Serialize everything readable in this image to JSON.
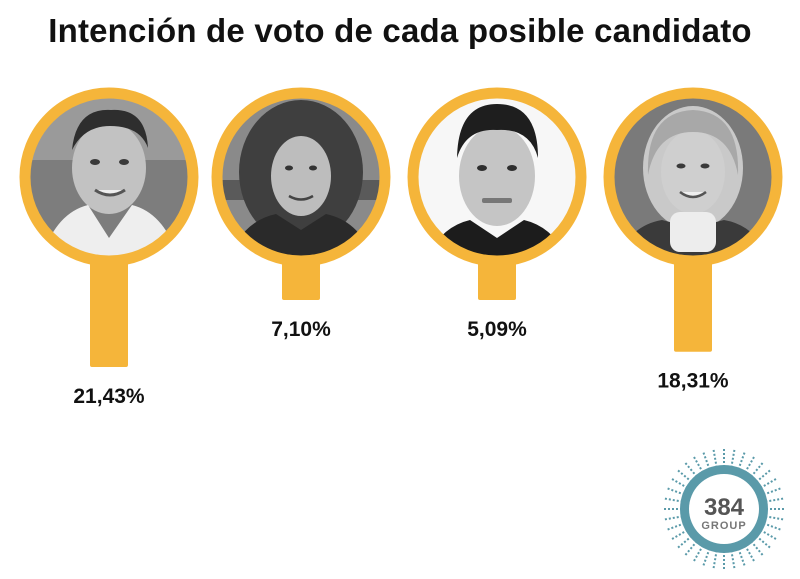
{
  "chart_data": {
    "type": "bar",
    "title": "Intención de voto de cada posible candidato",
    "value_labels": [
      "21,43%",
      "7,10%",
      "5,09%",
      "18,31%"
    ],
    "values": [
      21.43,
      7.1,
      5.09,
      18.31
    ],
    "unit": "%",
    "colors": {
      "bar": "#f5b53a",
      "portrait_bg": "#8d8d8d",
      "text": "#111111"
    }
  },
  "logo": {
    "number": "384",
    "text": "GROUP",
    "color": "#5a9aa9"
  }
}
